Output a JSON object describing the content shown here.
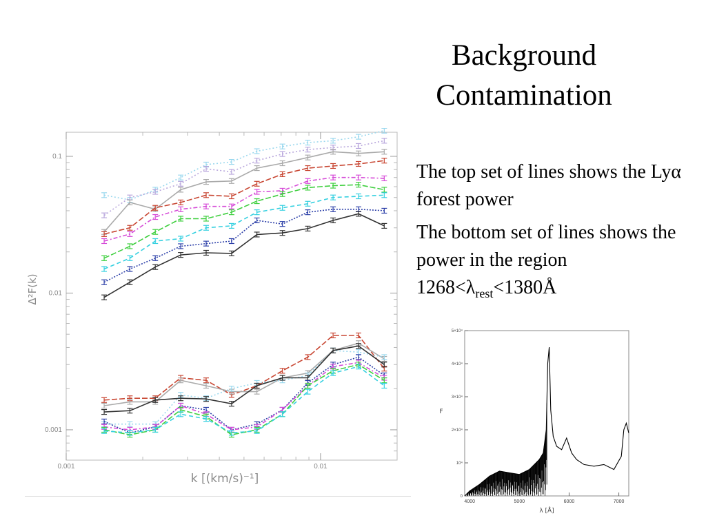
{
  "slide": {
    "title_line1": "Background",
    "title_line2": "Contamination",
    "bullet1_text": "The top set of lines shows the Ly",
    "bullet1_symbol": "α",
    "bullet1_end": " forest power",
    "bullet2_text": "The bottom set of lines shows the power in the region 1268<",
    "bullet2_symbol": "λ",
    "bullet2_sub": "rest",
    "bullet2_end": "<1380Å"
  },
  "chart_data": [
    {
      "type": "line",
      "xlabel": "k [(km/s)⁻¹]",
      "ylabel": "Δ²F(k)",
      "xscale": "log",
      "yscale": "log",
      "xlim": [
        0.001,
        0.02
      ],
      "ylim": [
        0.0006,
        0.15
      ],
      "xticks": [
        {
          "value": 0.001,
          "label": "0.001"
        },
        {
          "value": 0.01,
          "label": "0.01"
        }
      ],
      "yticks": [
        {
          "value": 0.001,
          "label": "0.001"
        },
        {
          "value": 0.01,
          "label": "0.01"
        },
        {
          "value": 0.1,
          "label": "0.1"
        }
      ],
      "x": [
        0.00141,
        0.00178,
        0.00224,
        0.00282,
        0.00355,
        0.00447,
        0.00562,
        0.00708,
        0.00891,
        0.0112,
        0.0141,
        0.0178
      ],
      "series": [
        {
          "color": "#9ad8ee",
          "dash": "2,3",
          "values": [
            0.052,
            0.048,
            0.057,
            0.07,
            0.087,
            0.091,
            0.109,
            0.118,
            0.126,
            0.13,
            0.139,
            0.154
          ]
        },
        {
          "color": "#b8a6dc",
          "dash": "2,3",
          "values": [
            0.037,
            0.05,
            0.055,
            0.063,
            0.081,
            0.077,
            0.093,
            0.104,
            0.112,
            0.116,
            0.119,
            0.13
          ]
        },
        {
          "color": "#aaaaaa",
          "dash": "",
          "values": [
            0.028,
            0.046,
            0.041,
            0.057,
            0.065,
            0.066,
            0.082,
            0.089,
            0.098,
            0.108,
            0.105,
            0.108
          ]
        },
        {
          "color": "#c84632",
          "dash": "8,3",
          "values": [
            0.027,
            0.03,
            0.042,
            0.046,
            0.052,
            0.051,
            0.063,
            0.074,
            0.082,
            0.085,
            0.088,
            0.093
          ]
        },
        {
          "color": "#d64bd8",
          "dash": "6,3,2,3",
          "values": [
            0.024,
            0.027,
            0.036,
            0.041,
            0.043,
            0.043,
            0.055,
            0.056,
            0.066,
            0.07,
            0.07,
            0.069
          ]
        },
        {
          "color": "#3ecf3e",
          "dash": "8,3",
          "values": [
            0.018,
            0.022,
            0.028,
            0.035,
            0.035,
            0.039,
            0.047,
            0.053,
            0.059,
            0.061,
            0.062,
            0.057
          ]
        },
        {
          "color": "#35d0e0",
          "dash": "6,4",
          "values": [
            0.015,
            0.018,
            0.024,
            0.025,
            0.03,
            0.031,
            0.039,
            0.042,
            0.045,
            0.05,
            0.051,
            0.052
          ]
        },
        {
          "color": "#2c3fa8",
          "dash": "2,2",
          "values": [
            0.012,
            0.015,
            0.018,
            0.022,
            0.023,
            0.024,
            0.034,
            0.032,
            0.039,
            0.041,
            0.041,
            0.04
          ]
        },
        {
          "color": "#333333",
          "dash": "",
          "values": [
            0.0093,
            0.012,
            0.0155,
            0.019,
            0.0197,
            0.0195,
            0.0268,
            0.0275,
            0.0296,
            0.034,
            0.038,
            0.031
          ]
        },
        {
          "color": "#c84632",
          "dash": "8,3",
          "values": [
            0.00165,
            0.0017,
            0.0017,
            0.0024,
            0.0023,
            0.0018,
            0.0021,
            0.0027,
            0.0034,
            0.0049,
            0.0049,
            0.0028
          ]
        },
        {
          "color": "#aaaaaa",
          "dash": "",
          "values": [
            0.0015,
            0.0016,
            0.0016,
            0.0023,
            0.0021,
            0.0019,
            0.0019,
            0.0024,
            0.0026,
            0.0038,
            0.0043,
            0.0033
          ]
        },
        {
          "color": "#9ad8ee",
          "dash": "2,3",
          "values": [
            0.0011,
            0.0011,
            0.0011,
            0.0018,
            0.0017,
            0.002,
            0.0022,
            0.0023,
            0.0025,
            0.0038,
            0.0037,
            0.0034
          ]
        },
        {
          "color": "#333333",
          "dash": "",
          "values": [
            0.00135,
            0.00138,
            0.00165,
            0.0017,
            0.00168,
            0.00155,
            0.0021,
            0.0024,
            0.0024,
            0.0038,
            0.0041,
            0.003
          ]
        },
        {
          "color": "#2c3fa8",
          "dash": "2,2",
          "values": [
            0.00115,
            0.00095,
            0.00105,
            0.0015,
            0.0014,
            0.001,
            0.0011,
            0.0014,
            0.0022,
            0.003,
            0.0034,
            0.0025
          ]
        },
        {
          "color": "#d64bd8",
          "dash": "6,3,2,3",
          "values": [
            0.00105,
            0.001,
            0.00105,
            0.0015,
            0.0013,
            0.001,
            0.00105,
            0.0014,
            0.0021,
            0.0029,
            0.0031,
            0.0024
          ]
        },
        {
          "color": "#3ecf3e",
          "dash": "8,3",
          "values": [
            0.001,
            0.00092,
            0.001,
            0.0014,
            0.00125,
            0.00092,
            0.001,
            0.0013,
            0.0021,
            0.0027,
            0.003,
            0.0023
          ]
        },
        {
          "color": "#35d0e0",
          "dash": "6,4",
          "values": [
            0.00098,
            0.00095,
            0.001,
            0.0013,
            0.0012,
            0.00095,
            0.00098,
            0.0013,
            0.0019,
            0.0026,
            0.0029,
            0.0021
          ]
        }
      ]
    },
    {
      "type": "line",
      "xlabel": "λ [Å]",
      "ylabel": "F",
      "xlim": [
        3900,
        7200
      ],
      "ylim": [
        0,
        50000
      ],
      "xticks": [
        {
          "value": 4000,
          "label": "4000"
        },
        {
          "value": 5000,
          "label": "5000"
        },
        {
          "value": 6000,
          "label": "6000"
        },
        {
          "value": 7000,
          "label": "7000"
        }
      ],
      "yticks": [
        {
          "value": 0,
          "label": "0"
        },
        {
          "value": 10000,
          "label": "10⁴"
        },
        {
          "value": 20000,
          "label": "2×10⁴"
        },
        {
          "value": 30000,
          "label": "3×10⁴"
        },
        {
          "value": 40000,
          "label": "4×10⁴"
        },
        {
          "value": 50000,
          "label": "5×10⁴"
        }
      ],
      "series": [
        {
          "color": "#000000",
          "x": [
            3900,
            4000,
            4200,
            4400,
            4600,
            4800,
            5000,
            5200,
            5400,
            5480,
            5540,
            5570,
            5600,
            5630,
            5680,
            5750,
            5850,
            5950,
            6050,
            6150,
            6300,
            6500,
            6700,
            6900,
            7050,
            7100,
            7150,
            7200
          ],
          "values": [
            0,
            1500,
            3500,
            6000,
            7500,
            7000,
            6500,
            8000,
            11000,
            13000,
            20000,
            40000,
            45000,
            26000,
            18000,
            15000,
            14000,
            17500,
            13000,
            11000,
            9500,
            9000,
            9500,
            8000,
            12000,
            20000,
            22000,
            19000
          ]
        }
      ]
    }
  ]
}
